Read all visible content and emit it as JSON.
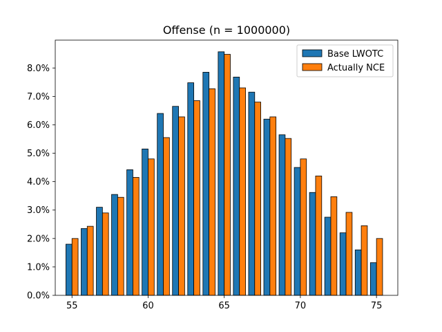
{
  "chart_data": {
    "type": "bar",
    "title": "Offense (n = 1000000)",
    "xlabel": "",
    "ylabel": "",
    "x": [
      55,
      56,
      57,
      58,
      59,
      60,
      61,
      62,
      63,
      64,
      65,
      66,
      67,
      68,
      69,
      70,
      71,
      72,
      73,
      74,
      75
    ],
    "xlim": [
      53.9,
      76.4
    ],
    "ylim": [
      0,
      0.0898
    ],
    "xticks": [
      55,
      60,
      65,
      70,
      75
    ],
    "xtick_labels": [
      "55",
      "60",
      "65",
      "70",
      "75"
    ],
    "yticks": [
      0,
      0.01,
      0.02,
      0.03,
      0.04,
      0.05,
      0.06,
      0.07,
      0.08
    ],
    "ytick_labels": [
      "0.0%",
      "1.0%",
      "2.0%",
      "3.0%",
      "4.0%",
      "5.0%",
      "6.0%",
      "7.0%",
      "8.0%"
    ],
    "grid": false,
    "legend_position": "top-right",
    "series": [
      {
        "name": "Base LWOTC",
        "color": "#1f77b4",
        "values": [
          0.018,
          0.0235,
          0.031,
          0.0355,
          0.0442,
          0.0515,
          0.064,
          0.0665,
          0.0748,
          0.0785,
          0.0857,
          0.0768,
          0.0715,
          0.062,
          0.0565,
          0.045,
          0.0362,
          0.0275,
          0.022,
          0.016,
          0.0115
        ]
      },
      {
        "name": "Actually NCE",
        "color": "#ff7f0e",
        "values": [
          0.02,
          0.0243,
          0.029,
          0.0345,
          0.0415,
          0.048,
          0.0555,
          0.0628,
          0.0685,
          0.0727,
          0.0848,
          0.073,
          0.068,
          0.0628,
          0.0552,
          0.048,
          0.042,
          0.0347,
          0.0292,
          0.0245,
          0.02
        ]
      }
    ]
  }
}
